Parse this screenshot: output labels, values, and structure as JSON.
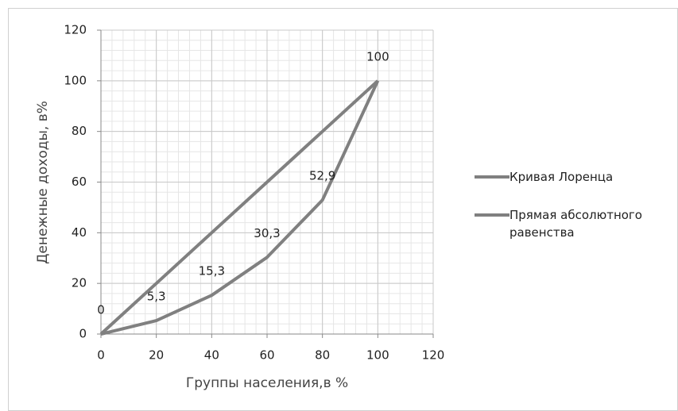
{
  "chart_data": {
    "type": "line",
    "x_label": "Группы населения,в %",
    "y_label": "Денежные доходы, в%",
    "x": [
      0,
      20,
      40,
      60,
      80,
      100
    ],
    "series": [
      {
        "name": "Кривая Лоренца",
        "color": "#808080",
        "values": [
          0,
          5.3,
          15.3,
          30.3,
          52.9,
          100
        ],
        "value_labels": [
          "0",
          "5,3",
          "15,3",
          "30,3",
          "52,9",
          "100"
        ]
      },
      {
        "name": "Прямая абсолютного равенства",
        "color": "#808080",
        "values": [
          0,
          20,
          40,
          60,
          80,
          100
        ]
      }
    ],
    "xlim": [
      0,
      120
    ],
    "xticks": [
      0,
      20,
      40,
      60,
      80,
      100,
      120
    ],
    "ylim": [
      0,
      120
    ],
    "yticks": [
      0,
      20,
      40,
      60,
      80,
      100,
      120
    ],
    "grid": true,
    "minor_grid_step": 4,
    "legend": "right"
  }
}
